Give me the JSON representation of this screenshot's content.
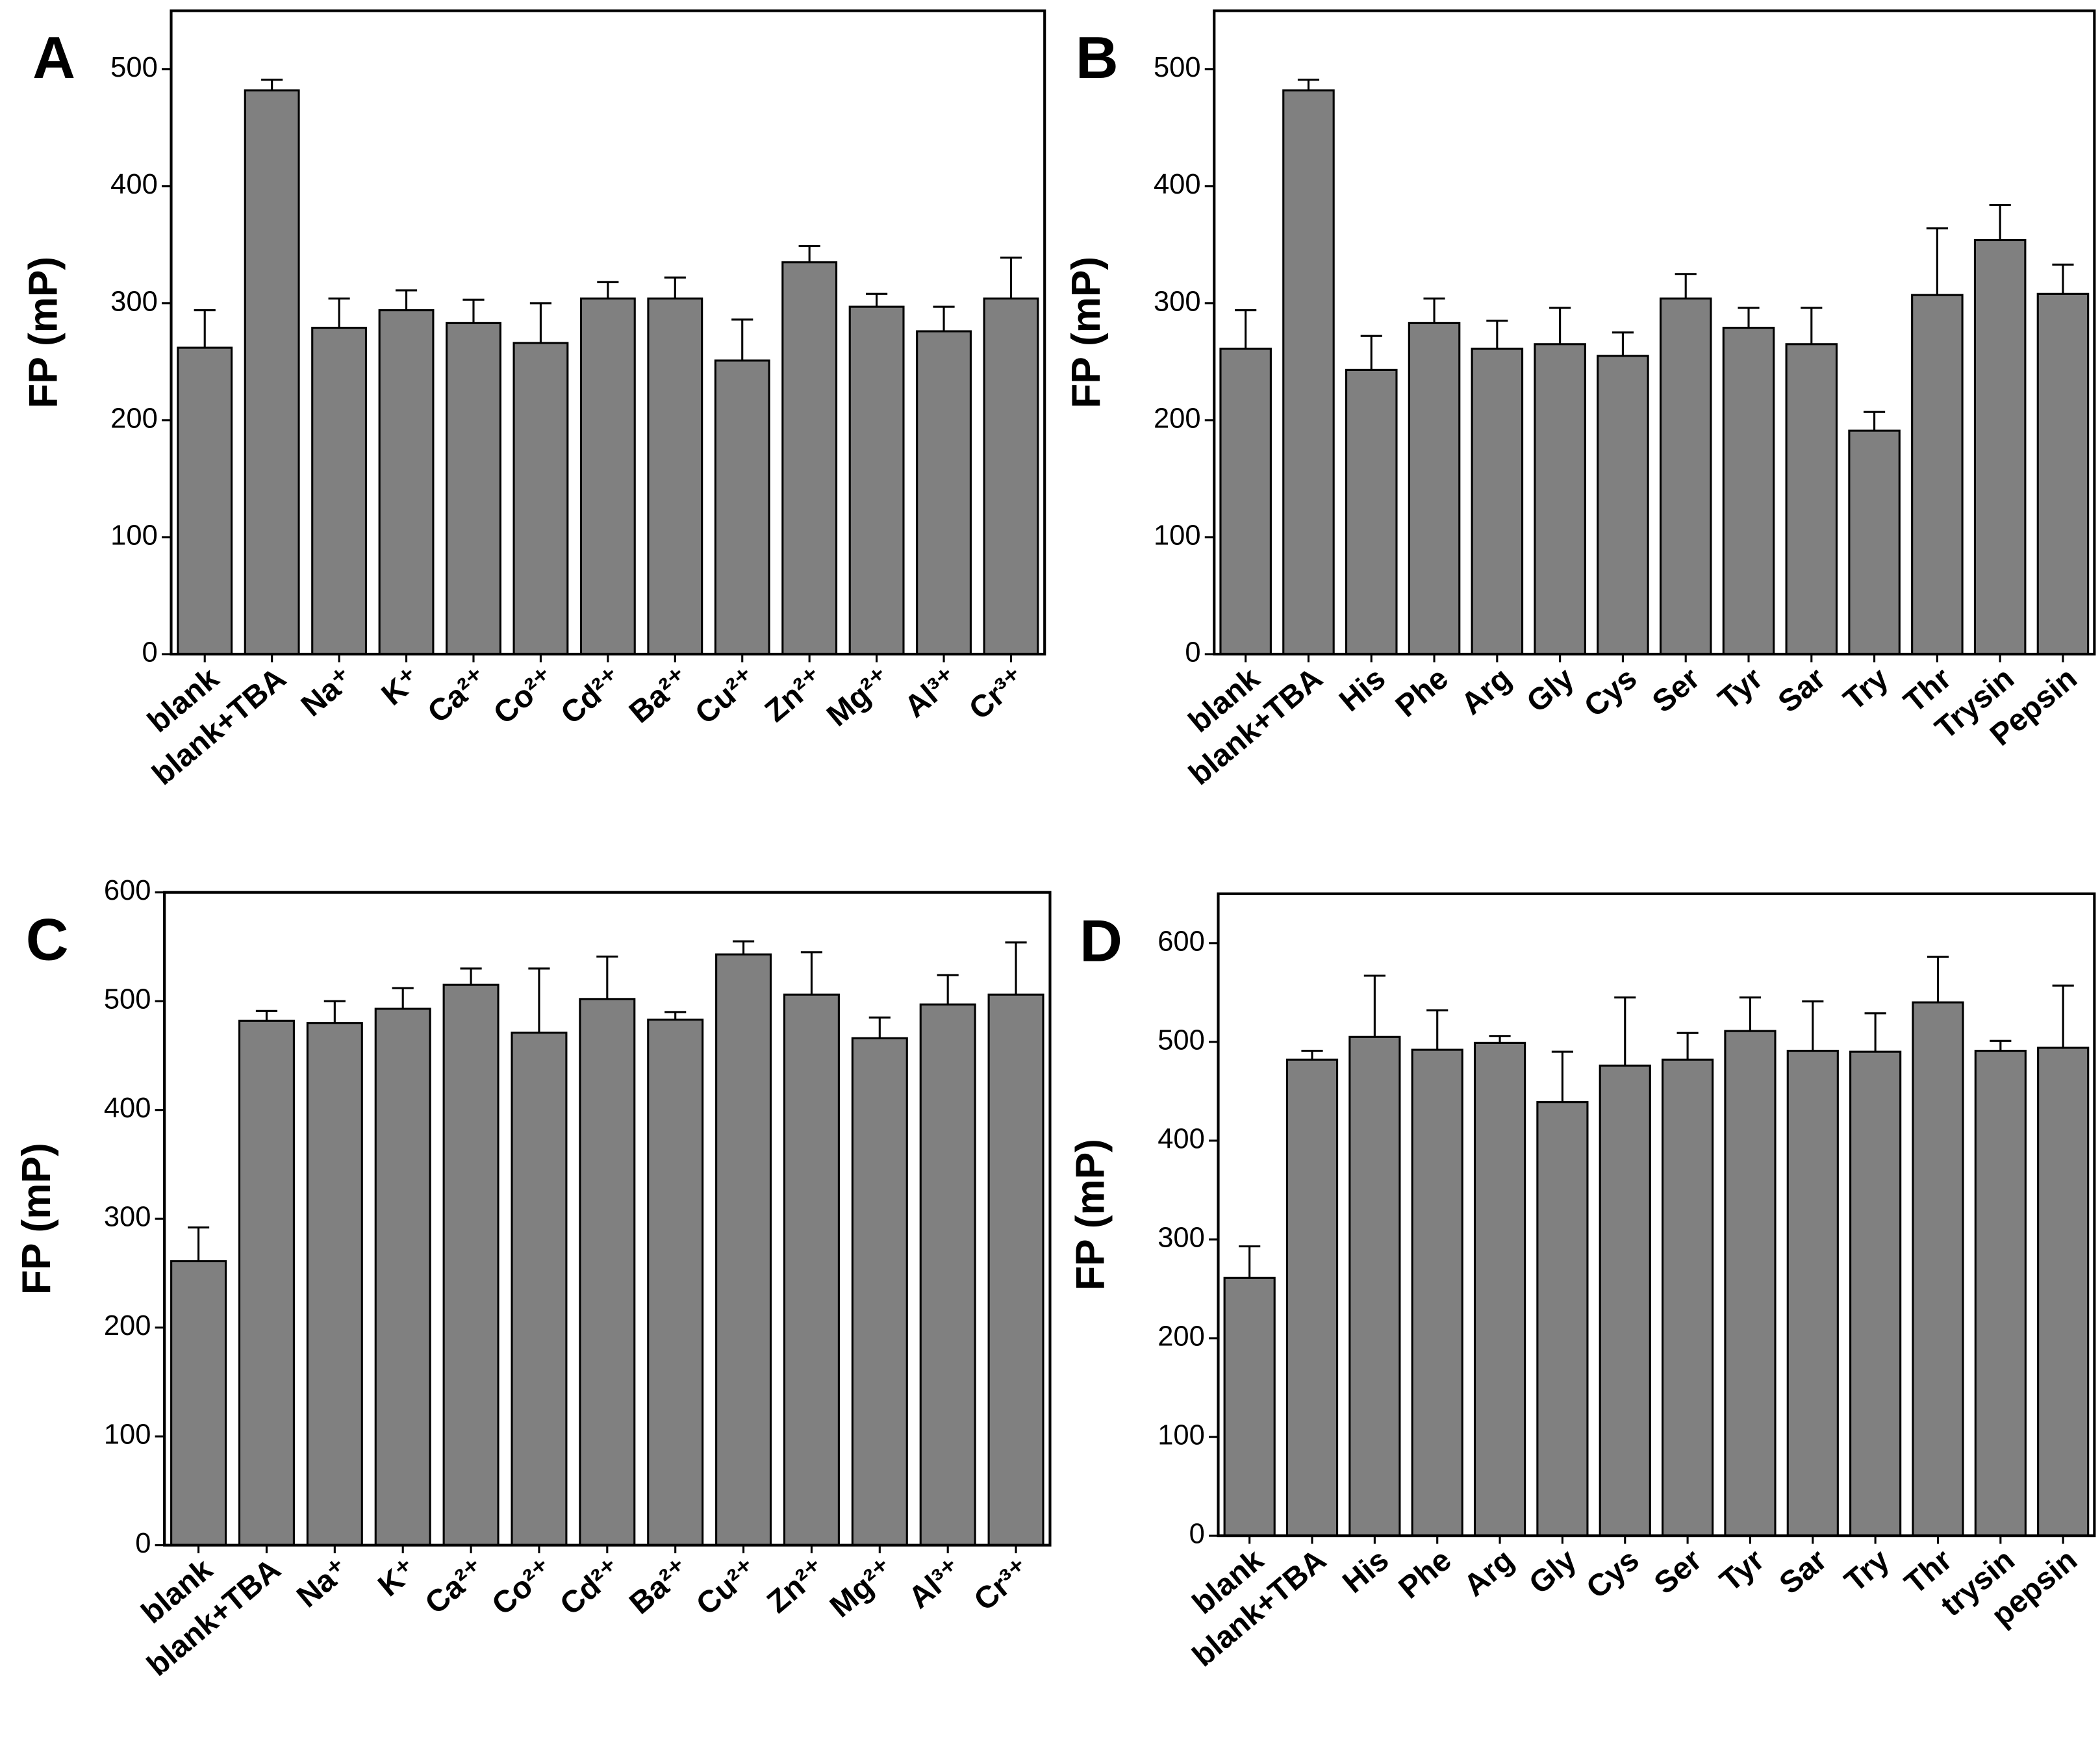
{
  "chart_data": [
    {
      "type": "bar",
      "title": "A",
      "ylabel": "FP (mP)",
      "color": "#808080",
      "categories": [
        "blank",
        "blank+TBA",
        "Na⁺",
        "K⁺",
        "Ca²⁺",
        "Co²⁺",
        "Cd²⁺",
        "Ba²⁺",
        "Cu²⁺",
        "Zn²⁺",
        "Mg²⁺",
        "Al³⁺",
        "Cr³⁺"
      ],
      "values": [
        262,
        482,
        279,
        294,
        283,
        266,
        304,
        304,
        251,
        335,
        297,
        276,
        304
      ],
      "errors": [
        32,
        9,
        25,
        17,
        20,
        34,
        14,
        18,
        35,
        14,
        11,
        21,
        35
      ],
      "ylim": [
        0,
        550
      ],
      "yticks": [
        0,
        100,
        200,
        300,
        400,
        500
      ]
    },
    {
      "type": "bar",
      "title": "B",
      "ylabel": "FP (mP)",
      "color": "#808080",
      "categories": [
        "blank",
        "blank+TBA",
        "His",
        "Phe",
        "Arg",
        "Gly",
        "Cys",
        "Ser",
        "Tyr",
        "Sar",
        "Try",
        "Thr",
        "Trysin",
        "Pepsin"
      ],
      "values": [
        261,
        482,
        243,
        283,
        261,
        265,
        255,
        304,
        279,
        265,
        191,
        307,
        354,
        308
      ],
      "errors": [
        33,
        9,
        29,
        21,
        24,
        31,
        20,
        21,
        17,
        31,
        16,
        57,
        30,
        25
      ],
      "ylim": [
        0,
        550
      ],
      "yticks": [
        0,
        100,
        200,
        300,
        400,
        500
      ]
    },
    {
      "type": "bar",
      "title": "C",
      "ylabel": "FP (mP)",
      "color": "#808080",
      "categories": [
        "blank",
        "blank+TBA",
        "Na⁺",
        "K⁺",
        "Ca²⁺",
        "Co²⁺",
        "Cd²⁺",
        "Ba²⁺",
        "Cu²⁺",
        "Zn²⁺",
        "Mg²⁺",
        "Al³⁺",
        "Cr³⁺"
      ],
      "values": [
        261,
        482,
        480,
        493,
        515,
        471,
        502,
        483,
        543,
        506,
        466,
        497,
        506
      ],
      "errors": [
        31,
        9,
        20,
        19,
        15,
        59,
        39,
        7,
        12,
        39,
        19,
        27,
        48
      ],
      "ylim": [
        0,
        600
      ],
      "yticks": [
        0,
        100,
        200,
        300,
        400,
        500,
        600
      ]
    },
    {
      "type": "bar",
      "title": "D",
      "ylabel": "FP (mP)",
      "color": "#808080",
      "categories": [
        "blank",
        "blank+TBA",
        "His",
        "Phe",
        "Arg",
        "Gly",
        "Cys",
        "Ser",
        "Tyr",
        "Sar",
        "Try",
        "Thr",
        "trysin",
        "pepsin"
      ],
      "values": [
        261,
        482,
        505,
        492,
        499,
        439,
        476,
        482,
        511,
        491,
        490,
        540,
        491,
        494
      ],
      "errors": [
        32,
        9,
        62,
        40,
        7,
        51,
        69,
        27,
        34,
        50,
        39,
        46,
        10,
        63
      ],
      "ylim": [
        0,
        650
      ],
      "yticks": [
        0,
        100,
        200,
        300,
        400,
        500,
        600
      ]
    }
  ]
}
